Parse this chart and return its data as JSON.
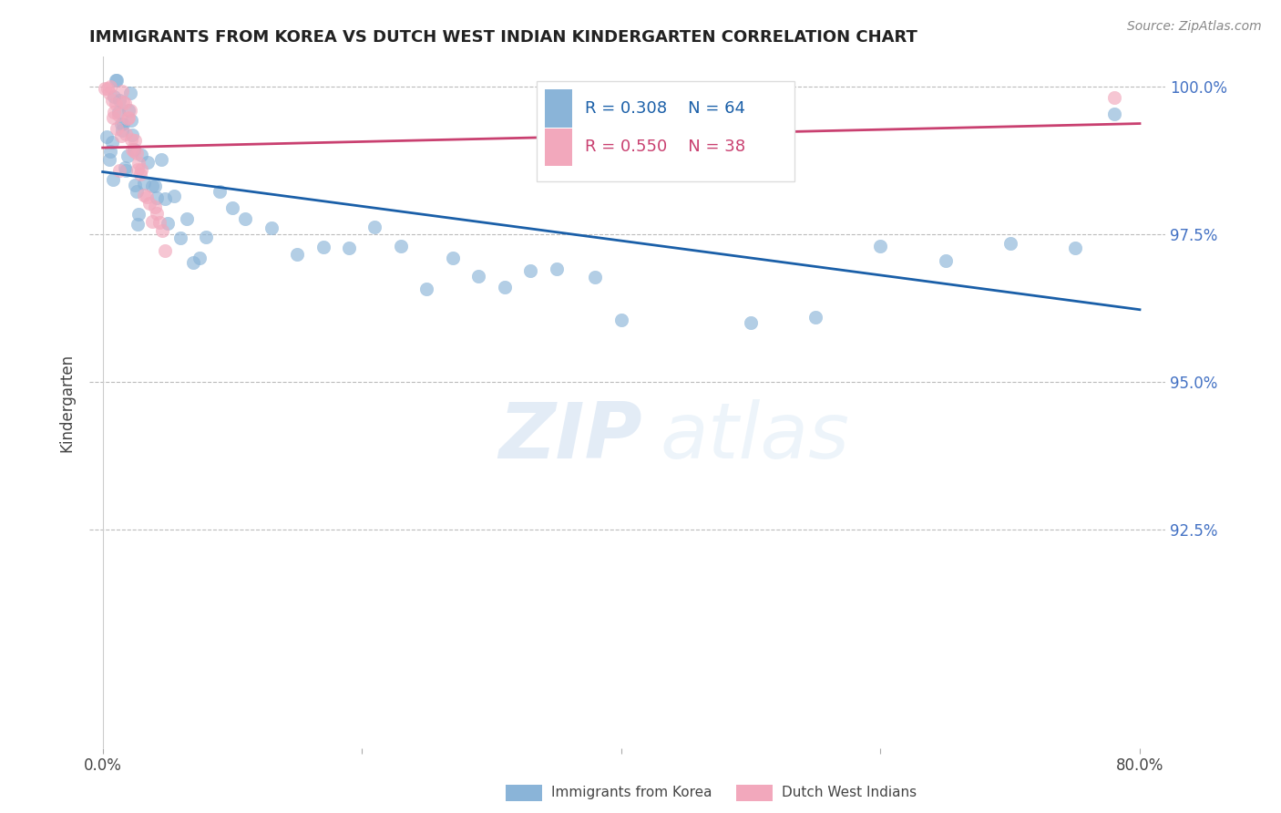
{
  "title": "IMMIGRANTS FROM KOREA VS DUTCH WEST INDIAN KINDERGARTEN CORRELATION CHART",
  "source": "Source: ZipAtlas.com",
  "ylabel": "Kindergarten",
  "legend_label_blue": "Immigrants from Korea",
  "legend_label_pink": "Dutch West Indians",
  "r_blue": 0.308,
  "n_blue": 64,
  "r_pink": 0.55,
  "n_pink": 38,
  "xlim": [
    -0.01,
    0.82
  ],
  "ylim": [
    0.888,
    1.005
  ],
  "x_ticks": [
    0.0,
    0.2,
    0.4,
    0.6,
    0.8
  ],
  "x_tick_labels": [
    "0.0%",
    "",
    "",
    "",
    "80.0%"
  ],
  "y_ticks": [
    0.925,
    0.95,
    0.975,
    1.0
  ],
  "y_tick_labels": [
    "92.5%",
    "95.0%",
    "97.5%",
    "100.0%"
  ],
  "color_blue": "#8ab4d8",
  "color_pink": "#f2a8bc",
  "line_color_blue": "#1a5fa8",
  "line_color_pink": "#c94070",
  "watermark_zip": "ZIP",
  "watermark_atlas": "atlas",
  "blue_x": [
    0.003,
    0.005,
    0.006,
    0.007,
    0.008,
    0.009,
    0.01,
    0.011,
    0.012,
    0.013,
    0.014,
    0.015,
    0.016,
    0.017,
    0.018,
    0.019,
    0.02,
    0.021,
    0.022,
    0.023,
    0.024,
    0.025,
    0.026,
    0.027,
    0.028,
    0.03,
    0.032,
    0.035,
    0.038,
    0.04,
    0.042,
    0.045,
    0.048,
    0.05,
    0.055,
    0.06,
    0.065,
    0.07,
    0.075,
    0.08,
    0.09,
    0.1,
    0.11,
    0.13,
    0.15,
    0.17,
    0.19,
    0.21,
    0.23,
    0.25,
    0.27,
    0.29,
    0.31,
    0.33,
    0.35,
    0.38,
    0.4,
    0.5,
    0.55,
    0.6,
    0.65,
    0.7,
    0.75,
    0.78
  ],
  "blue_y": [
    0.99,
    0.988,
    0.987,
    0.986,
    0.985,
    0.999,
    0.998,
    0.999,
    0.997,
    0.996,
    0.995,
    0.994,
    0.993,
    0.992,
    0.991,
    0.99,
    0.999,
    0.998,
    0.997,
    0.996,
    0.985,
    0.984,
    0.982,
    0.981,
    0.98,
    0.988,
    0.987,
    0.986,
    0.985,
    0.984,
    0.983,
    0.982,
    0.981,
    0.98,
    0.979,
    0.978,
    0.977,
    0.976,
    0.975,
    0.974,
    0.98,
    0.979,
    0.978,
    0.977,
    0.976,
    0.975,
    0.974,
    0.973,
    0.972,
    0.971,
    0.97,
    0.969,
    0.968,
    0.967,
    0.966,
    0.965,
    0.963,
    0.961,
    0.96,
    0.97,
    0.972,
    0.974,
    0.976,
    0.999
  ],
  "pink_x": [
    0.002,
    0.004,
    0.005,
    0.006,
    0.007,
    0.008,
    0.009,
    0.01,
    0.011,
    0.012,
    0.013,
    0.014,
    0.015,
    0.016,
    0.017,
    0.018,
    0.019,
    0.02,
    0.021,
    0.022,
    0.023,
    0.024,
    0.025,
    0.026,
    0.027,
    0.028,
    0.029,
    0.03,
    0.032,
    0.034,
    0.036,
    0.038,
    0.04,
    0.042,
    0.044,
    0.046,
    0.048,
    0.78
  ],
  "pink_y": [
    0.998,
    0.997,
    0.999,
    0.998,
    0.997,
    0.996,
    0.995,
    0.994,
    0.993,
    0.992,
    0.991,
    0.99,
    0.999,
    0.998,
    0.997,
    0.996,
    0.995,
    0.994,
    0.993,
    0.992,
    0.991,
    0.99,
    0.989,
    0.988,
    0.987,
    0.986,
    0.985,
    0.984,
    0.983,
    0.982,
    0.981,
    0.98,
    0.979,
    0.978,
    0.977,
    0.976,
    0.975,
    0.999
  ]
}
